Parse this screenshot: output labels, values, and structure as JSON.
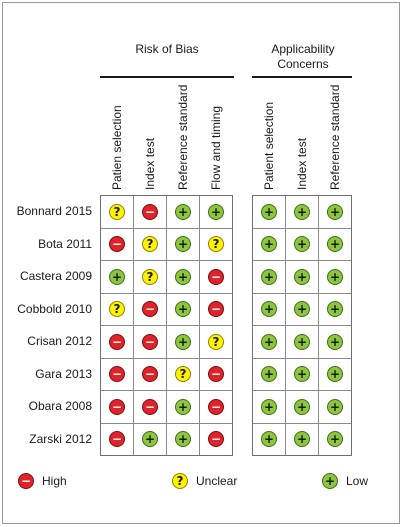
{
  "chart_data": {
    "type": "table",
    "groups": [
      {
        "title": "Risk of Bias",
        "columns": [
          "Patien selection",
          "Index test",
          "Reference standard",
          "Flow and timing"
        ]
      },
      {
        "title": "Applicability Concerns",
        "columns": [
          "Patient selection",
          "Index test",
          "Reference standard"
        ]
      }
    ],
    "studies": [
      "Bonnard 2015",
      "Bota 2011",
      "Castera 2009",
      "Cobbold 2010",
      "Crisan 2012",
      "Gara 2013",
      "Obara 2008",
      "Zarski 2012"
    ],
    "risk_of_bias": [
      [
        "unclear",
        "high",
        "low",
        "low"
      ],
      [
        "high",
        "unclear",
        "low",
        "unclear"
      ],
      [
        "low",
        "unclear",
        "low",
        "high"
      ],
      [
        "unclear",
        "high",
        "low",
        "high"
      ],
      [
        "high",
        "high",
        "low",
        "unclear"
      ],
      [
        "high",
        "high",
        "unclear",
        "high"
      ],
      [
        "high",
        "high",
        "low",
        "high"
      ],
      [
        "high",
        "low",
        "low",
        "high"
      ]
    ],
    "applicability": [
      [
        "low",
        "low",
        "low"
      ],
      [
        "low",
        "low",
        "low"
      ],
      [
        "low",
        "low",
        "low"
      ],
      [
        "low",
        "low",
        "low"
      ],
      [
        "low",
        "low",
        "low"
      ],
      [
        "low",
        "low",
        "low"
      ],
      [
        "low",
        "low",
        "low"
      ],
      [
        "low",
        "low",
        "low"
      ]
    ],
    "symbols": {
      "low": "+",
      "high": "−",
      "unclear": "?"
    },
    "colors": {
      "low": "#8cc63f",
      "high": "#e0232a",
      "unclear": "#fff200"
    },
    "legend": [
      {
        "key": "high",
        "label": "High"
      },
      {
        "key": "unclear",
        "label": "Unclear"
      },
      {
        "key": "low",
        "label": "Low"
      }
    ]
  }
}
